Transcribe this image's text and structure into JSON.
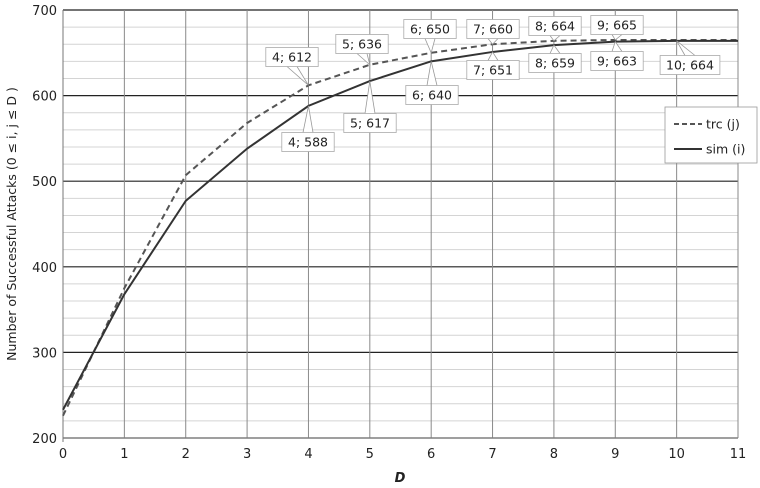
{
  "chart_data": {
    "type": "line",
    "title": "",
    "xlabel": "D",
    "ylabel": "Number of Successful Attacks  (0 ≤ i, j ≤ D )",
    "xlim": [
      0,
      11
    ],
    "ylim": [
      200,
      700
    ],
    "x_ticks": [
      "0",
      "1",
      "2",
      "3",
      "4",
      "5",
      "6",
      "7",
      "8",
      "9",
      "10",
      "11"
    ],
    "y_ticks": [
      "200",
      "300",
      "400",
      "500",
      "600",
      "700"
    ],
    "grid": {
      "major_y": 100,
      "minor_y": 20,
      "vertical": true
    },
    "legend_position": "right",
    "x": [
      0,
      1,
      2,
      3,
      4,
      5,
      6,
      7,
      8,
      9,
      10,
      11
    ],
    "series": [
      {
        "name": "trc (j)",
        "style": "dashed",
        "color": "#555555",
        "values": [
          226,
          375,
          507,
          568,
          612,
          636,
          650,
          660,
          664,
          665,
          665,
          665
        ]
      },
      {
        "name": "sim (i)",
        "style": "solid",
        "color": "#333333",
        "values": [
          233,
          368,
          477,
          538,
          588,
          617,
          640,
          651,
          659,
          663,
          664,
          664
        ]
      }
    ],
    "data_labels": [
      {
        "series": 0,
        "x": 4,
        "text": "4; 612"
      },
      {
        "series": 0,
        "x": 5,
        "text": "5; 636"
      },
      {
        "series": 0,
        "x": 6,
        "text": "6; 650"
      },
      {
        "series": 0,
        "x": 7,
        "text": "7; 660"
      },
      {
        "series": 0,
        "x": 8,
        "text": "8; 664"
      },
      {
        "series": 0,
        "x": 9,
        "text": "9; 665"
      },
      {
        "series": 1,
        "x": 4,
        "text": "4; 588"
      },
      {
        "series": 1,
        "x": 5,
        "text": "5; 617"
      },
      {
        "series": 1,
        "x": 6,
        "text": "6; 640"
      },
      {
        "series": 1,
        "x": 7,
        "text": "7; 651"
      },
      {
        "series": 1,
        "x": 8,
        "text": "8; 659"
      },
      {
        "series": 1,
        "x": 9,
        "text": "9; 663"
      },
      {
        "series": 1,
        "x": 10,
        "text": "10; 664"
      }
    ]
  }
}
